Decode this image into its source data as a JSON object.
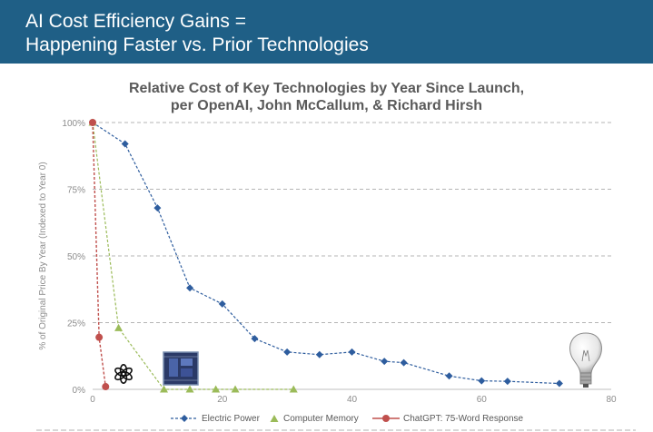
{
  "header": {
    "line1": "AI Cost Efficiency Gains =",
    "line2": "Happening Faster vs. Prior Technologies"
  },
  "colors": {
    "header_bg": "#1f5f86",
    "electric_power": "#2e5d9e",
    "computer_memory": "#9bbb59",
    "chatgpt": "#c0504d",
    "grid": "#b5b5b5",
    "axis_text": "#8c8c8c"
  },
  "icons": [
    "openai-logo-icon",
    "memory-chip-icon",
    "light-bulb-icon"
  ],
  "chart_data": {
    "type": "line",
    "title": "Relative Cost of Key Technologies by Year Since Launch, per OpenAI, John McCallum, & Richard Hirsh",
    "title_lines": [
      "Relative Cost of Key Technologies by Year Since Launch,",
      "per OpenAI, John McCallum, & Richard Hirsh"
    ],
    "ylabel": "% of Original Price By Year (Indexed to Year 0)",
    "xlabel": "",
    "xlim": [
      0,
      80
    ],
    "ylim": [
      0,
      100
    ],
    "x_ticks": [
      "0",
      "20",
      "40",
      "60",
      "80"
    ],
    "y_ticks": [
      "0%",
      "25%",
      "50%",
      "75%",
      "100%"
    ],
    "grid": "horizontal dashed",
    "legend_position": "bottom",
    "series": [
      {
        "name": "Electric Power",
        "marker": "diamond",
        "points": [
          [
            0,
            100
          ],
          [
            5,
            92
          ],
          [
            10,
            68
          ],
          [
            15,
            38
          ],
          [
            20,
            32
          ],
          [
            25,
            19
          ],
          [
            30,
            14
          ],
          [
            35,
            13
          ],
          [
            40,
            14
          ],
          [
            45,
            10.5
          ],
          [
            48,
            10
          ],
          [
            55,
            5
          ],
          [
            60,
            3.2
          ],
          [
            64,
            3
          ],
          [
            72,
            2.2
          ]
        ]
      },
      {
        "name": "Computer Memory",
        "marker": "triangle",
        "points": [
          [
            0,
            100
          ],
          [
            4,
            23
          ],
          [
            11,
            0
          ],
          [
            15,
            0
          ],
          [
            19,
            0
          ],
          [
            22,
            0
          ],
          [
            31,
            0
          ]
        ]
      },
      {
        "name": "ChatGPT: 75-Word Response",
        "marker": "circle",
        "points": [
          [
            0,
            100
          ],
          [
            1,
            19.5
          ],
          [
            2,
            1
          ]
        ]
      }
    ]
  }
}
